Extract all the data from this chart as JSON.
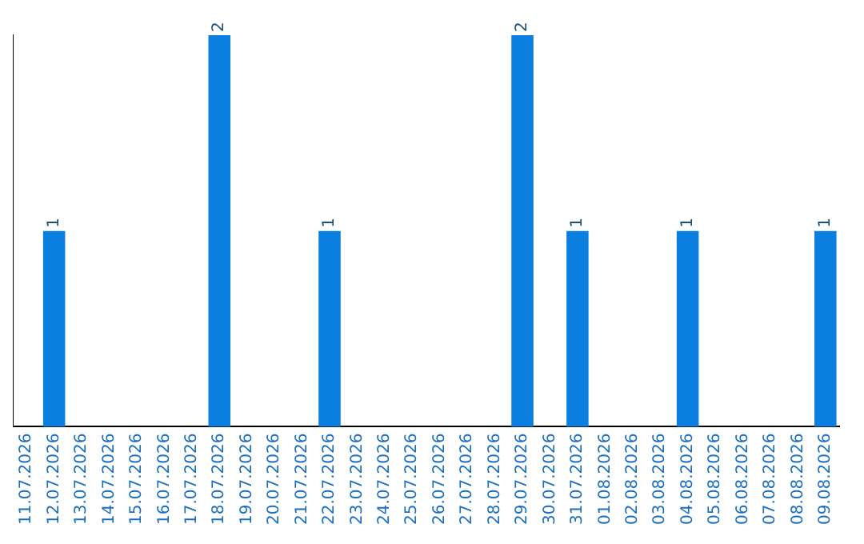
{
  "chart_data": {
    "type": "bar",
    "categories": [
      "11.07.2026",
      "12.07.2026",
      "13.07.2026",
      "14.07.2026",
      "15.07.2026",
      "16.07.2026",
      "17.07.2026",
      "18.07.2026",
      "19.07.2026",
      "20.07.2026",
      "21.07.2026",
      "22.07.2026",
      "23.07.2026",
      "24.07.2026",
      "25.07.2026",
      "26.07.2026",
      "27.07.2026",
      "28.07.2026",
      "29.07.2026",
      "30.07.2026",
      "31.07.2026",
      "01.08.2026",
      "02.08.2026",
      "03.08.2026",
      "04.08.2026",
      "05.08.2026",
      "06.08.2026",
      "07.08.2026",
      "08.08.2026",
      "09.08.2026"
    ],
    "values": [
      0,
      1,
      0,
      0,
      0,
      0,
      0,
      2,
      0,
      0,
      0,
      1,
      0,
      0,
      0,
      0,
      0,
      0,
      2,
      0,
      1,
      0,
      0,
      0,
      1,
      0,
      0,
      0,
      0,
      1
    ],
    "value_labels": [
      null,
      "1",
      null,
      null,
      null,
      null,
      null,
      "2",
      null,
      null,
      null,
      "1",
      null,
      null,
      null,
      null,
      null,
      null,
      "2",
      null,
      "1",
      null,
      null,
      null,
      "1",
      null,
      null,
      null,
      null,
      "1"
    ],
    "color": "#0a7fe0",
    "grid": false,
    "legend": false,
    "tick_labels": "x"
  }
}
